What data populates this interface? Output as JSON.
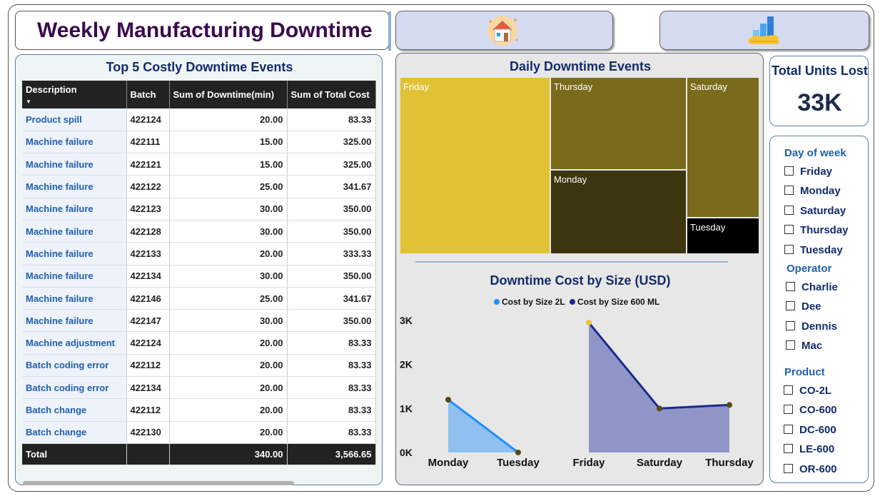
{
  "header": {
    "title": "Weekly Manufacturing Downtime"
  },
  "nav": {
    "home_icon": "home-icon",
    "chart_icon": "bar-chart-icon"
  },
  "table_panel": {
    "title": "Top 5 Costly Downtime Events",
    "columns": [
      "Description",
      "Batch",
      "Sum of Downtime(min)",
      "Sum of Total Cost"
    ],
    "rows": [
      [
        "Product spill",
        "422124",
        "20.00",
        "83.33"
      ],
      [
        "Machine failure",
        "422111",
        "15.00",
        "325.00"
      ],
      [
        "Machine failure",
        "422121",
        "15.00",
        "325.00"
      ],
      [
        "Machine failure",
        "422122",
        "25.00",
        "341.67"
      ],
      [
        "Machine failure",
        "422123",
        "30.00",
        "350.00"
      ],
      [
        "Machine failure",
        "422128",
        "30.00",
        "350.00"
      ],
      [
        "Machine failure",
        "422133",
        "20.00",
        "333.33"
      ],
      [
        "Machine failure",
        "422134",
        "30.00",
        "350.00"
      ],
      [
        "Machine failure",
        "422146",
        "25.00",
        "341.67"
      ],
      [
        "Machine failure",
        "422147",
        "30.00",
        "350.00"
      ],
      [
        "Machine adjustment",
        "422124",
        "20.00",
        "83.33"
      ],
      [
        "Batch coding error",
        "422112",
        "20.00",
        "83.33"
      ],
      [
        "Batch coding error",
        "422134",
        "20.00",
        "83.33"
      ],
      [
        "Batch change",
        "422112",
        "20.00",
        "83.33"
      ],
      [
        "Batch change",
        "422130",
        "20.00",
        "83.33"
      ]
    ],
    "total": {
      "label": "Total",
      "downtime": "340.00",
      "cost": "3,566.65"
    }
  },
  "treemap": {
    "title": "Daily Downtime Events",
    "tiles": [
      {
        "label": "Friday",
        "color": "#e0c234"
      },
      {
        "label": "Thursday",
        "color": "#7a6b1c"
      },
      {
        "label": "Saturday",
        "color": "#7a6b1c"
      },
      {
        "label": "Monday",
        "color": "#3d3410"
      },
      {
        "label": "Tuesday",
        "color": "#000000"
      }
    ]
  },
  "kpi": {
    "title": "Total Units Lost",
    "value": "33K"
  },
  "slicers": {
    "day_of_week": {
      "title": "Day of week",
      "items": [
        "Friday",
        "Monday",
        "Saturday",
        "Thursday",
        "Tuesday"
      ]
    },
    "operator": {
      "title": "Operator",
      "items": [
        "Charlie",
        "Dee",
        "Dennis",
        "Mac"
      ]
    },
    "product": {
      "title": "Product",
      "items": [
        "CO-2L",
        "CO-600",
        "DC-600",
        "LE-600",
        "OR-600"
      ]
    }
  },
  "chart_data": {
    "type": "area",
    "title": "Downtime Cost by Size (USD)",
    "xlabel": "",
    "ylabel": "",
    "ylim": [
      0,
      3000
    ],
    "y_ticks": [
      "0K",
      "1K",
      "2K",
      "3K"
    ],
    "series": [
      {
        "name": "Cost by Size 2L",
        "color": "#1e8fff",
        "fill": "#8fc0f0",
        "categories": [
          "Monday",
          "Tuesday"
        ],
        "values": [
          1200,
          0
        ]
      },
      {
        "name": "Cost by Size 600 ML",
        "color": "#1a2a8e",
        "fill": "#9095c8",
        "categories": [
          "Friday",
          "Saturday",
          "Thursday"
        ],
        "values": [
          2950,
          1000,
          1080
        ]
      }
    ]
  }
}
